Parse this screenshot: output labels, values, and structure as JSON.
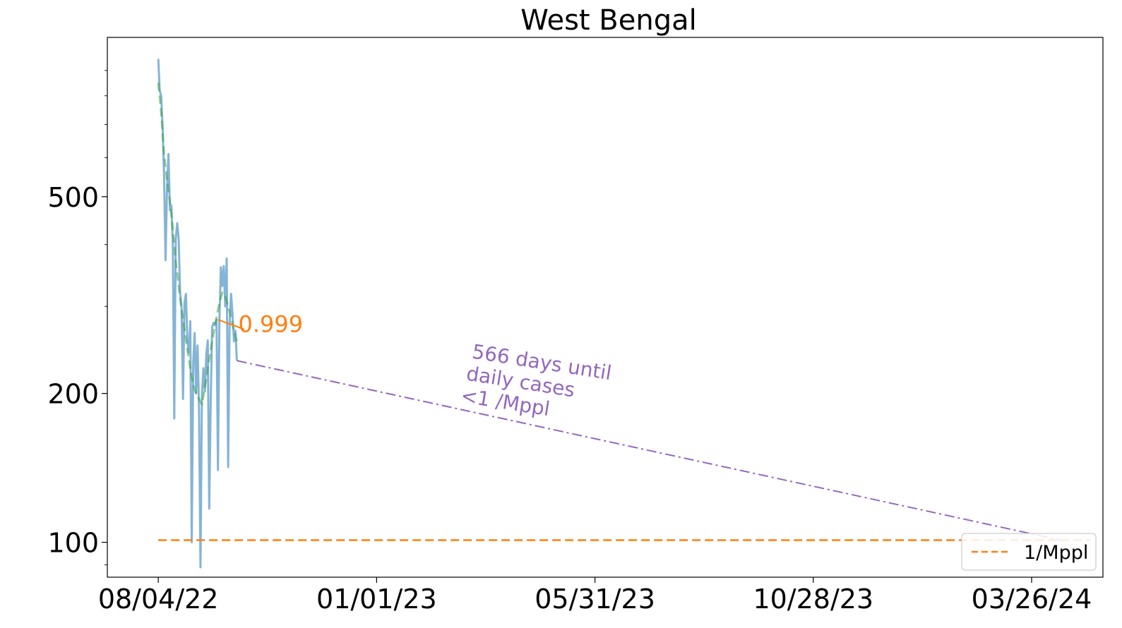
{
  "chart_data": {
    "type": "line",
    "title": "West Bengal",
    "xlabel": "",
    "ylabel": "",
    "y_scale": "log",
    "ylim": [
      85,
      1050
    ],
    "xlim": [
      "2022-06-30",
      "2024-05-14"
    ],
    "x_ticks": [
      "2022-08-04",
      "2023-01-01",
      "2023-05-31",
      "2023-10-28",
      "2024-03-26"
    ],
    "x_tick_labels": [
      "08/04/22",
      "01/01/23",
      "05/31/23",
      "10/28/23",
      "03/26/24"
    ],
    "y_ticks": [
      100,
      200,
      500
    ],
    "y_tick_labels": [
      "100",
      "200",
      "500"
    ],
    "grid": false,
    "legend": {
      "position": "lower-right",
      "entries": [
        {
          "label": "1/Mppl",
          "color": "#ff7f0e",
          "style": "dashed"
        }
      ]
    },
    "series": [
      {
        "role": "daily",
        "color": "#1f77b4",
        "style": "solid",
        "points": [
          [
            "2022-08-04",
            950
          ],
          [
            "2022-08-05",
            820
          ],
          [
            "2022-08-06",
            800
          ],
          [
            "2022-08-07",
            690
          ],
          [
            "2022-08-08",
            550
          ],
          [
            "2022-08-09",
            372
          ],
          [
            "2022-08-10",
            520
          ],
          [
            "2022-08-11",
            610
          ],
          [
            "2022-08-12",
            470
          ],
          [
            "2022-08-13",
            480
          ],
          [
            "2022-08-14",
            400
          ],
          [
            "2022-08-15",
            178
          ],
          [
            "2022-08-16",
            410
          ],
          [
            "2022-08-17",
            442
          ],
          [
            "2022-08-18",
            412
          ],
          [
            "2022-08-19",
            320
          ],
          [
            "2022-08-20",
            298
          ],
          [
            "2022-08-21",
            195
          ],
          [
            "2022-08-22",
            305
          ],
          [
            "2022-08-23",
            318
          ],
          [
            "2022-08-24",
            255
          ],
          [
            "2022-08-25",
            242
          ],
          [
            "2022-08-26",
            280
          ],
          [
            "2022-08-27",
            100
          ],
          [
            "2022-08-28",
            230
          ],
          [
            "2022-08-29",
            265
          ],
          [
            "2022-08-30",
            200
          ],
          [
            "2022-08-31",
            250
          ],
          [
            "2022-09-01",
            185
          ],
          [
            "2022-09-02",
            89
          ],
          [
            "2022-09-03",
            198
          ],
          [
            "2022-09-04",
            225
          ],
          [
            "2022-09-05",
            202
          ],
          [
            "2022-09-06",
            240
          ],
          [
            "2022-09-07",
            256
          ],
          [
            "2022-09-08",
            117
          ],
          [
            "2022-09-09",
            190
          ],
          [
            "2022-09-10",
            272
          ],
          [
            "2022-09-11",
            278
          ],
          [
            "2022-09-12",
            275
          ],
          [
            "2022-09-13",
            282
          ],
          [
            "2022-09-14",
            140
          ],
          [
            "2022-09-15",
            280
          ],
          [
            "2022-09-16",
            360
          ],
          [
            "2022-09-17",
            330
          ],
          [
            "2022-09-18",
            362
          ],
          [
            "2022-09-19",
            300
          ],
          [
            "2022-09-20",
            375
          ],
          [
            "2022-09-21",
            142
          ],
          [
            "2022-09-22",
            275
          ],
          [
            "2022-09-23",
            318
          ],
          [
            "2022-09-24",
            290
          ],
          [
            "2022-09-25",
            255
          ],
          [
            "2022-09-26",
            268
          ],
          [
            "2022-09-27",
            233
          ]
        ]
      },
      {
        "role": "smoothed",
        "color": "#2ca02c",
        "style": "dashed",
        "points": [
          [
            "2022-08-04",
            850
          ],
          [
            "2022-08-06",
            740
          ],
          [
            "2022-08-08",
            610
          ],
          [
            "2022-08-10",
            540
          ],
          [
            "2022-08-12",
            490
          ],
          [
            "2022-08-14",
            430
          ],
          [
            "2022-08-16",
            370
          ],
          [
            "2022-08-18",
            330
          ],
          [
            "2022-08-20",
            295
          ],
          [
            "2022-08-22",
            270
          ],
          [
            "2022-08-24",
            245
          ],
          [
            "2022-08-26",
            225
          ],
          [
            "2022-08-28",
            208
          ],
          [
            "2022-08-30",
            200
          ],
          [
            "2022-09-01",
            195
          ],
          [
            "2022-09-03",
            190
          ],
          [
            "2022-09-05",
            205
          ],
          [
            "2022-09-07",
            225
          ],
          [
            "2022-09-09",
            245
          ],
          [
            "2022-09-11",
            265
          ],
          [
            "2022-09-13",
            285
          ],
          [
            "2022-09-15",
            305
          ],
          [
            "2022-09-17",
            320
          ],
          [
            "2022-09-19",
            315
          ],
          [
            "2022-09-21",
            300
          ],
          [
            "2022-09-23",
            285
          ],
          [
            "2022-09-25",
            268
          ],
          [
            "2022-09-27",
            255
          ]
        ]
      },
      {
        "role": "projection",
        "color": "#9467bd",
        "style": "dashdot",
        "points": [
          [
            "2022-09-27",
            233
          ],
          [
            "2024-04-15",
            101
          ]
        ]
      },
      {
        "role": "threshold",
        "name": "1/Mppl",
        "color": "#ff7f0e",
        "style": "dashed",
        "points": [
          [
            "2022-08-04",
            101
          ],
          [
            "2024-05-05",
            101
          ]
        ]
      }
    ],
    "annotations": [
      {
        "text": "0.999",
        "color": "#ff7f0e",
        "x": "2022-09-28",
        "y": 277,
        "arrow_to": [
          "2022-09-14",
          282
        ]
      },
      {
        "lines": [
          "566 days until",
          "daily cases",
          "<1 /Mppl"
        ],
        "color": "#9467bd",
        "x": "2023-03-07",
        "y": 236,
        "rotation_deg": 9
      }
    ]
  }
}
